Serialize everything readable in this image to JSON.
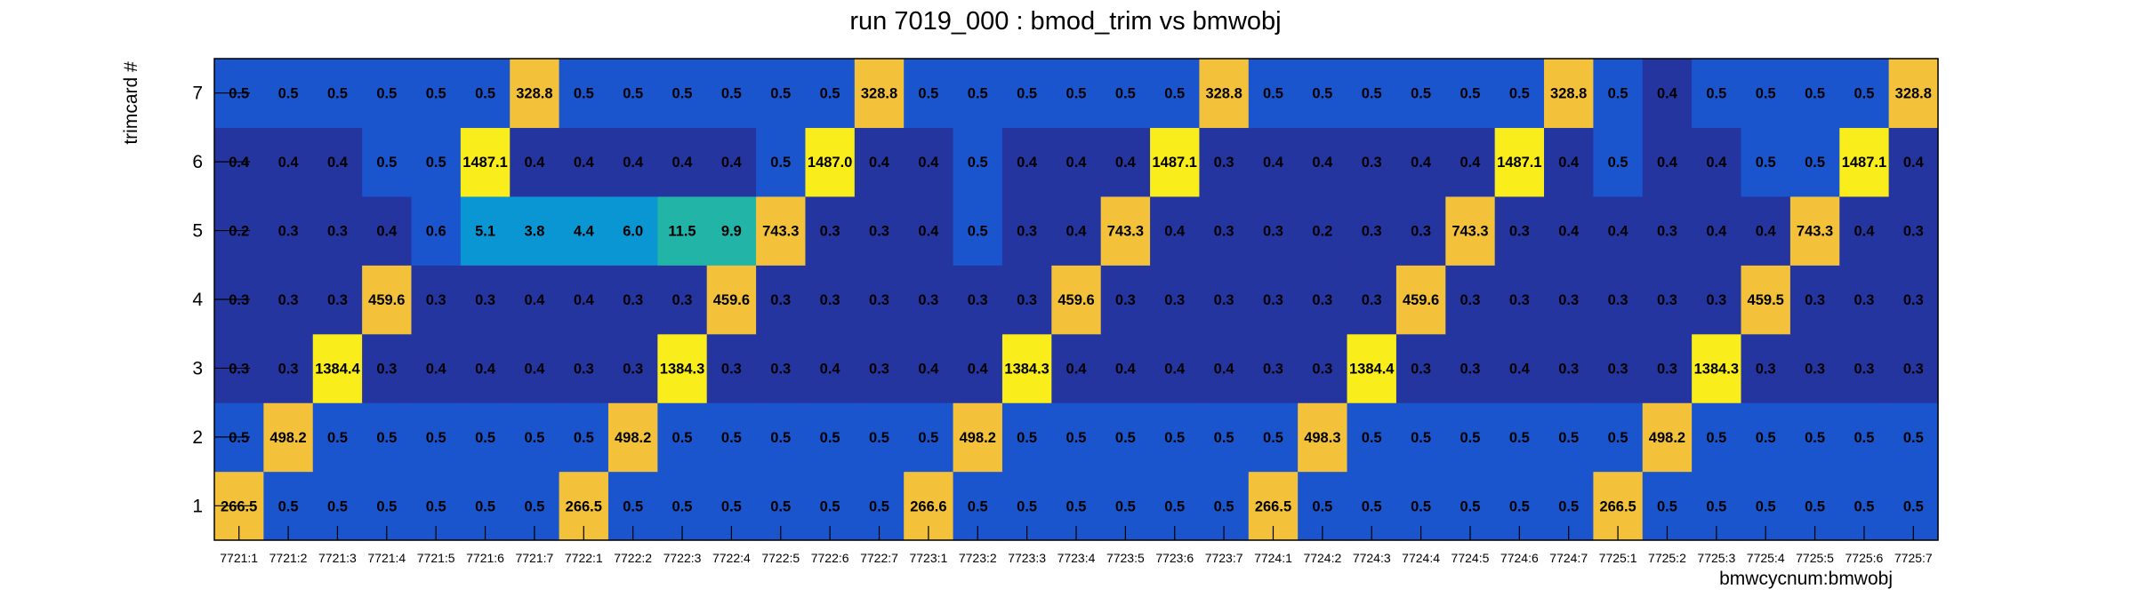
{
  "chart_data": {
    "type": "heatmap",
    "title": "run 7019_000 : bmod_trim vs bmwobj",
    "xlabel": "bmwcycnum:bmwobj",
    "ylabel": "trimcard #",
    "x_categories": [
      "7721:1",
      "7721:2",
      "7721:3",
      "7721:4",
      "7721:5",
      "7721:6",
      "7721:7",
      "7722:1",
      "7722:2",
      "7722:3",
      "7722:4",
      "7722:5",
      "7722:6",
      "7722:7",
      "7723:1",
      "7723:2",
      "7723:3",
      "7723:4",
      "7723:5",
      "7723:6",
      "7723:7",
      "7724:1",
      "7724:2",
      "7724:3",
      "7724:4",
      "7724:5",
      "7724:6",
      "7724:7",
      "7725:1",
      "7725:2",
      "7725:3",
      "7725:4",
      "7725:5",
      "7725:6",
      "7725:7"
    ],
    "y_categories": [
      "1",
      "2",
      "3",
      "4",
      "5",
      "6",
      "7"
    ],
    "value_labels": {
      "1": [
        "266.5",
        "0.5",
        "0.5",
        "0.5",
        "0.5",
        "0.5",
        "0.5",
        "266.5",
        "0.5",
        "0.5",
        "0.5",
        "0.5",
        "0.5",
        "0.5",
        "266.6",
        "0.5",
        "0.5",
        "0.5",
        "0.5",
        "0.5",
        "0.5",
        "266.5",
        "0.5",
        "0.5",
        "0.5",
        "0.5",
        "0.5",
        "0.5",
        "266.5",
        "0.5",
        "0.5",
        "0.5",
        "0.5",
        "0.5",
        "0.5"
      ],
      "2": [
        "0.5",
        "498.2",
        "0.5",
        "0.5",
        "0.5",
        "0.5",
        "0.5",
        "0.5",
        "498.2",
        "0.5",
        "0.5",
        "0.5",
        "0.5",
        "0.5",
        "0.5",
        "498.2",
        "0.5",
        "0.5",
        "0.5",
        "0.5",
        "0.5",
        "0.5",
        "498.3",
        "0.5",
        "0.5",
        "0.5",
        "0.5",
        "0.5",
        "0.5",
        "498.2",
        "0.5",
        "0.5",
        "0.5",
        "0.5",
        "0.5"
      ],
      "3": [
        "0.3",
        "0.3",
        "1384.4",
        "0.3",
        "0.4",
        "0.4",
        "0.4",
        "0.3",
        "0.3",
        "1384.3",
        "0.3",
        "0.3",
        "0.4",
        "0.3",
        "0.4",
        "0.4",
        "1384.3",
        "0.4",
        "0.4",
        "0.4",
        "0.4",
        "0.3",
        "0.3",
        "1384.4",
        "0.3",
        "0.3",
        "0.4",
        "0.3",
        "0.3",
        "0.3",
        "1384.3",
        "0.3",
        "0.3",
        "0.3",
        "0.3"
      ],
      "4": [
        "0.3",
        "0.3",
        "0.3",
        "459.6",
        "0.3",
        "0.3",
        "0.4",
        "0.4",
        "0.3",
        "0.3",
        "459.6",
        "0.3",
        "0.3",
        "0.3",
        "0.3",
        "0.3",
        "0.3",
        "459.6",
        "0.3",
        "0.3",
        "0.3",
        "0.3",
        "0.3",
        "0.3",
        "459.6",
        "0.3",
        "0.3",
        "0.3",
        "0.3",
        "0.3",
        "0.3",
        "459.5",
        "0.3",
        "0.3",
        "0.3"
      ],
      "5": [
        "0.2",
        "0.3",
        "0.3",
        "0.4",
        "0.6",
        "5.1",
        "3.8",
        "4.4",
        "6.0",
        "11.5",
        "9.9",
        "743.3",
        "0.3",
        "0.3",
        "0.4",
        "0.5",
        "0.3",
        "0.4",
        "743.3",
        "0.4",
        "0.3",
        "0.3",
        "0.2",
        "0.3",
        "0.3",
        "743.3",
        "0.3",
        "0.4",
        "0.4",
        "0.3",
        "0.4",
        "0.4",
        "743.3",
        "0.4",
        "0.3"
      ],
      "6": [
        "0.4",
        "0.4",
        "0.4",
        "0.5",
        "0.5",
        "1487.1",
        "0.4",
        "0.4",
        "0.4",
        "0.4",
        "0.4",
        "0.5",
        "1487.0",
        "0.4",
        "0.4",
        "0.5",
        "0.4",
        "0.4",
        "0.4",
        "1487.1",
        "0.3",
        "0.4",
        "0.4",
        "0.3",
        "0.4",
        "0.4",
        "1487.1",
        "0.4",
        "0.5",
        "0.4",
        "0.4",
        "0.5",
        "0.5",
        "1487.1",
        "0.4"
      ],
      "7": [
        "0.5",
        "0.5",
        "0.5",
        "0.5",
        "0.5",
        "0.5",
        "328.8",
        "0.5",
        "0.5",
        "0.5",
        "0.5",
        "0.5",
        "0.5",
        "328.8",
        "0.5",
        "0.5",
        "0.5",
        "0.5",
        "0.5",
        "0.5",
        "328.8",
        "0.5",
        "0.5",
        "0.5",
        "0.5",
        "0.5",
        "0.5",
        "328.8",
        "0.5",
        "0.4",
        "0.5",
        "0.5",
        "0.5",
        "0.5",
        "328.8"
      ]
    },
    "color_scale": {
      "low": "#2535a0",
      "mid_low": "#1a55cd",
      "mid": "#0a96d2",
      "mid_high": "#23b4a8",
      "high_orange": "#f4c23a",
      "high_yellow": "#f9ee1c"
    },
    "grid": false,
    "legend": "none"
  }
}
